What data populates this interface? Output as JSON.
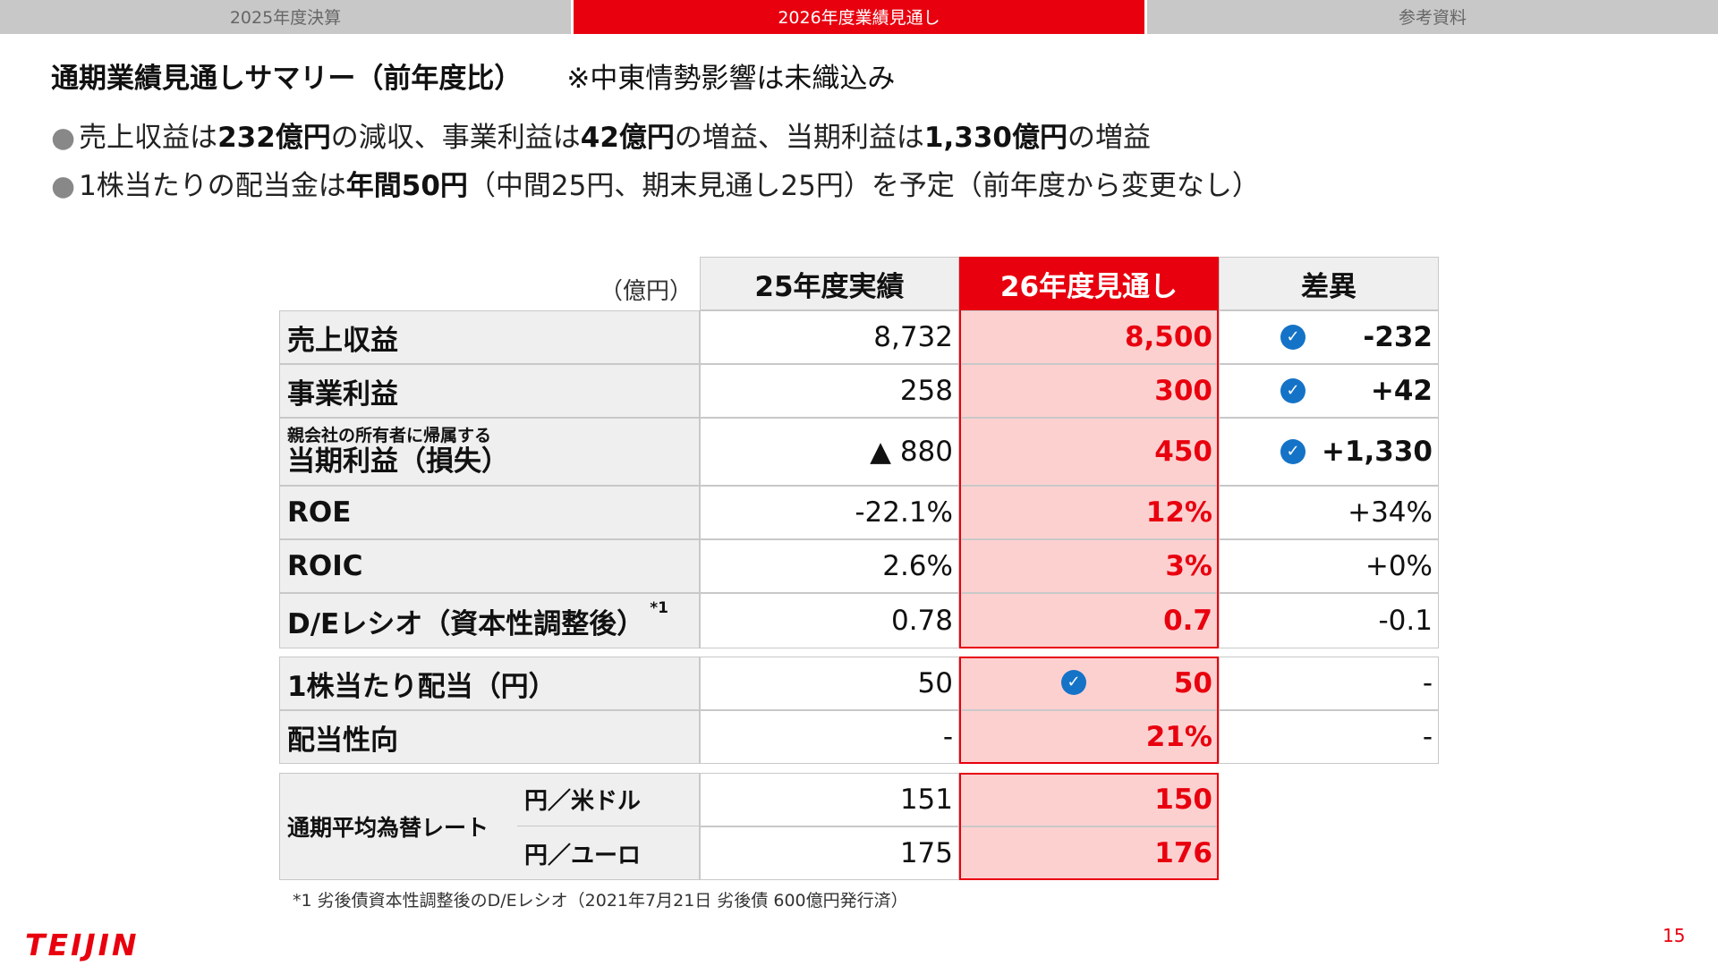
{
  "tabs": [
    "2025年度決算",
    "2026年度業績見通し",
    "参考資料"
  ],
  "title": "通期業績見通しサマリー（前年度比）",
  "title_note": "※中東情勢影響は未織込み",
  "bullets": [
    {
      "p1": "売上収益は",
      "b1": "232億円",
      "p2": "の減収、事業利益は",
      "b2": "42億円",
      "p3": "の増益、当期利益は",
      "b3": "1,330億円",
      "p4": "の増益"
    },
    {
      "p1": "1株当たりの配当金は",
      "b1": "年間50円",
      "p2": "（中間25円、期末見通し25円）を予定（前年度から変更なし）"
    }
  ],
  "table": {
    "unit": "（億円）",
    "headers": {
      "actual": "25年度実績",
      "forecast": "26年度見通し",
      "diff": "差異"
    },
    "rows": [
      {
        "label": "売上収益",
        "actual": "8,732",
        "forecast": "8,500",
        "diff": "-232"
      },
      {
        "label": "事業利益",
        "actual": "258",
        "forecast": "300",
        "diff": "+42"
      },
      {
        "label_small": "親会社の所有者に帰属する",
        "label": "当期利益（損失）",
        "actual": "▲ 880",
        "forecast": "450",
        "diff": "+1,330"
      },
      {
        "label": "ROE",
        "actual": "-22.1%",
        "forecast": "12%",
        "diff": "+34%"
      },
      {
        "label": "ROIC",
        "actual": "2.6%",
        "forecast": "3%",
        "diff": "+0%"
      },
      {
        "label": "D/Eレシオ（資本性調整後）",
        "label_sup": "*1",
        "actual": "0.78",
        "forecast": "0.7",
        "diff": "-0.1"
      }
    ],
    "dividend_rows": [
      {
        "label": "1株当たり配当（円）",
        "actual": "50",
        "forecast": "50",
        "diff": "-"
      },
      {
        "label": "配当性向",
        "actual": "-",
        "forecast": "21%",
        "diff": "-"
      }
    ],
    "fx": {
      "label": "通期平均為替レート",
      "rows": [
        {
          "pair": "円／米ドル",
          "actual": "151",
          "forecast": "150"
        },
        {
          "pair": "円／ユーロ",
          "actual": "175",
          "forecast": "176"
        }
      ]
    }
  },
  "check_symbol": "✓",
  "footnote": "*1 劣後債資本性調整後のD/Eレシオ（2021年7月21日 劣後債 600億円発行済）",
  "logo": "TEIJIN",
  "page_number": "15"
}
